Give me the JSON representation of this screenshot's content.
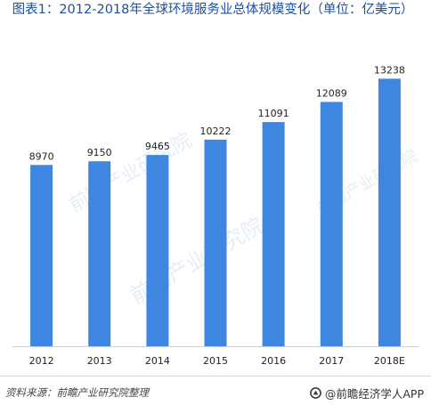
{
  "title": "图表1：2012-2018年全球环境服务业总体规模变化（单位：亿美元）",
  "source": "资料来源：前瞻产业研究院整理",
  "brand": "@前瞻经济学人APP",
  "watermark": "前瞻产业研究院",
  "colors": {
    "bar": "#3f86e0",
    "title": "#1e4e9c",
    "axis": "#cfcfcf"
  },
  "chart_data": {
    "type": "bar",
    "title": "图表1：2012-2018年全球环境服务业总体规模变化（单位：亿美元）",
    "categories": [
      "2012",
      "2013",
      "2014",
      "2015",
      "2016",
      "2017",
      "2018E"
    ],
    "values": [
      8970,
      9150,
      9465,
      10222,
      11091,
      12089,
      13238
    ],
    "value_labels": [
      "8970",
      "9150",
      "9465",
      "10222",
      "11091",
      "12089",
      "13238"
    ],
    "ylim": [
      0,
      14400
    ],
    "grid": false,
    "legend": "none"
  }
}
